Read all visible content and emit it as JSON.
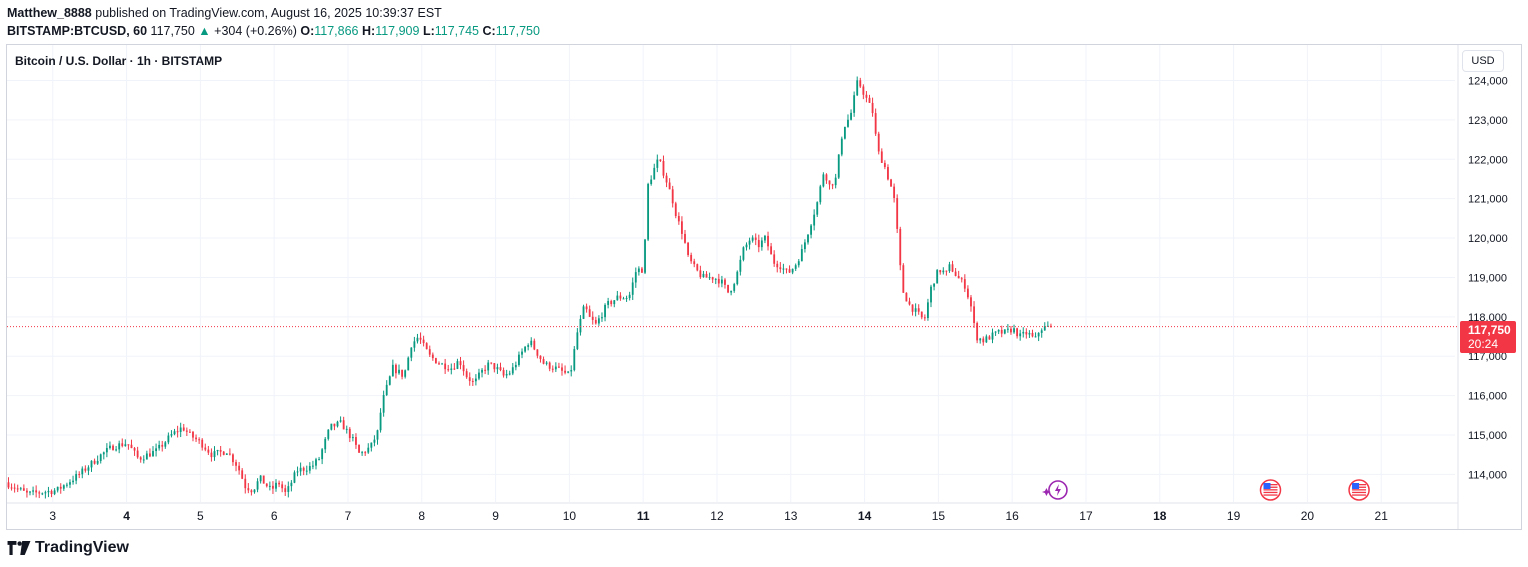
{
  "header": {
    "username": "Matthew_8888",
    "published": "published on TradingView.com, August 16, 2025 10:39:37 EST",
    "symbol": "BITSTAMP:BTCUSD, 60",
    "last": "117,750",
    "change_arrow": "▲",
    "change": "+304 (+0.26%)",
    "o_label": "O:",
    "o": "117,866",
    "h_label": "H:",
    "h": "117,909",
    "l_label": "L:",
    "l": "117,745",
    "c_label": "C:",
    "c": "117,750"
  },
  "legend": {
    "title": "Bitcoin / U.S. Dollar · 1h · BITSTAMP"
  },
  "currency_button": "USD",
  "price_tag": {
    "price": "117,750",
    "countdown": "20:24"
  },
  "footer": {
    "brand": "TradingView"
  },
  "colors": {
    "up": "#089981",
    "down": "#f23645",
    "grid": "#f0f3fa",
    "text": "#131722"
  },
  "chart_data": {
    "type": "candlestick",
    "title": "Bitcoin / U.S. Dollar · 1h · BITSTAMP",
    "timeframe": "1h",
    "currency": "USD",
    "ylim": [
      113300,
      124900
    ],
    "y_ticks": [
      "114,000",
      "115,000",
      "116,000",
      "117,000",
      "118,000",
      "119,000",
      "120,000",
      "121,000",
      "122,000",
      "123,000",
      "124,000"
    ],
    "y_tick_values": [
      114000,
      115000,
      116000,
      117000,
      118000,
      119000,
      120000,
      121000,
      122000,
      123000,
      124000
    ],
    "x_ticks": [
      {
        "day": 2.0,
        "label": "3",
        "bold": false
      },
      {
        "day": 3.0,
        "label": "4",
        "bold": true
      },
      {
        "day": 4.0,
        "label": "5",
        "bold": false
      },
      {
        "day": 5.0,
        "label": "6",
        "bold": false
      },
      {
        "day": 6.0,
        "label": "7",
        "bold": false
      },
      {
        "day": 7.0,
        "label": "8",
        "bold": false
      },
      {
        "day": 8.0,
        "label": "9",
        "bold": false
      },
      {
        "day": 9.0,
        "label": "10",
        "bold": false
      },
      {
        "day": 10.0,
        "label": "11",
        "bold": true
      },
      {
        "day": 11.0,
        "label": "12",
        "bold": false
      },
      {
        "day": 12.0,
        "label": "13",
        "bold": false
      },
      {
        "day": 13.0,
        "label": "14",
        "bold": true
      },
      {
        "day": 14.0,
        "label": "15",
        "bold": false
      },
      {
        "day": 15.0,
        "label": "16",
        "bold": false
      },
      {
        "day": 16.0,
        "label": "17",
        "bold": false
      },
      {
        "day": 17.0,
        "label": "18",
        "bold": true
      },
      {
        "day": 18.0,
        "label": "19",
        "bold": false
      },
      {
        "day": 19.0,
        "label": "20",
        "bold": false
      },
      {
        "day": 20.0,
        "label": "21",
        "bold": false
      }
    ],
    "x_range_days": [
      1.38,
      21.0
    ],
    "last_price": 117750,
    "grid": true,
    "anchors": [
      [
        1.4,
        113800
      ],
      [
        1.7,
        113500
      ],
      [
        2.1,
        113600
      ],
      [
        2.4,
        114000
      ],
      [
        2.7,
        114500
      ],
      [
        2.85,
        114700
      ],
      [
        3.05,
        114800
      ],
      [
        3.2,
        114400
      ],
      [
        3.45,
        114600
      ],
      [
        3.65,
        115000
      ],
      [
        3.8,
        115200
      ],
      [
        3.9,
        115000
      ],
      [
        4.05,
        114800
      ],
      [
        4.2,
        114500
      ],
      [
        4.4,
        114600
      ],
      [
        4.55,
        114200
      ],
      [
        4.65,
        113700
      ],
      [
        4.75,
        113600
      ],
      [
        4.85,
        113900
      ],
      [
        5.0,
        113600
      ],
      [
        5.1,
        113800
      ],
      [
        5.2,
        113500
      ],
      [
        5.35,
        114100
      ],
      [
        5.55,
        114200
      ],
      [
        5.65,
        114400
      ],
      [
        5.8,
        115200
      ],
      [
        5.95,
        115300
      ],
      [
        6.1,
        114900
      ],
      [
        6.2,
        114500
      ],
      [
        6.35,
        114700
      ],
      [
        6.45,
        115100
      ],
      [
        6.5,
        115800
      ],
      [
        6.65,
        116700
      ],
      [
        6.8,
        116500
      ],
      [
        6.9,
        117300
      ],
      [
        7.0,
        117500
      ],
      [
        7.05,
        117300
      ],
      [
        7.15,
        117000
      ],
      [
        7.3,
        116800
      ],
      [
        7.45,
        116700
      ],
      [
        7.55,
        116900
      ],
      [
        7.65,
        116500
      ],
      [
        7.75,
        116300
      ],
      [
        7.85,
        116600
      ],
      [
        7.95,
        116800
      ],
      [
        8.05,
        116700
      ],
      [
        8.15,
        116500
      ],
      [
        8.25,
        116600
      ],
      [
        8.4,
        117100
      ],
      [
        8.5,
        117400
      ],
      [
        8.6,
        117100
      ],
      [
        8.7,
        116800
      ],
      [
        8.85,
        116700
      ],
      [
        8.95,
        116600
      ],
      [
        9.05,
        116500
      ],
      [
        9.15,
        117600
      ],
      [
        9.25,
        118300
      ],
      [
        9.3,
        118000
      ],
      [
        9.4,
        117800
      ],
      [
        9.55,
        118300
      ],
      [
        9.7,
        118500
      ],
      [
        9.85,
        118500
      ],
      [
        9.95,
        119200
      ],
      [
        10.05,
        119200
      ],
      [
        10.1,
        121300
      ],
      [
        10.2,
        121800
      ],
      [
        10.25,
        122000
      ],
      [
        10.35,
        121500
      ],
      [
        10.45,
        120900
      ],
      [
        10.5,
        120500
      ],
      [
        10.58,
        120100
      ],
      [
        10.65,
        119500
      ],
      [
        10.75,
        119200
      ],
      [
        10.85,
        119000
      ],
      [
        11.0,
        119000
      ],
      [
        11.1,
        118900
      ],
      [
        11.2,
        118600
      ],
      [
        11.3,
        119000
      ],
      [
        11.4,
        119700
      ],
      [
        11.5,
        120000
      ],
      [
        11.6,
        119800
      ],
      [
        11.7,
        120000
      ],
      [
        11.8,
        119400
      ],
      [
        11.9,
        119300
      ],
      [
        12.0,
        119100
      ],
      [
        12.1,
        119300
      ],
      [
        12.2,
        119700
      ],
      [
        12.3,
        120300
      ],
      [
        12.4,
        120900
      ],
      [
        12.5,
        121800
      ],
      [
        12.55,
        121300
      ],
      [
        12.65,
        121500
      ],
      [
        12.75,
        122800
      ],
      [
        12.85,
        123100
      ],
      [
        12.95,
        124000
      ],
      [
        13.05,
        123600
      ],
      [
        13.15,
        123200
      ],
      [
        13.22,
        122200
      ],
      [
        13.3,
        121900
      ],
      [
        13.4,
        121300
      ],
      [
        13.45,
        120900
      ],
      [
        13.5,
        119800
      ],
      [
        13.55,
        118700
      ],
      [
        13.65,
        118300
      ],
      [
        13.75,
        118100
      ],
      [
        13.85,
        117900
      ],
      [
        13.95,
        118800
      ],
      [
        14.05,
        119200
      ],
      [
        14.15,
        119100
      ],
      [
        14.2,
        119300
      ],
      [
        14.3,
        119000
      ],
      [
        14.4,
        118800
      ],
      [
        14.48,
        118300
      ],
      [
        14.55,
        117500
      ],
      [
        14.65,
        117400
      ],
      [
        14.75,
        117500
      ],
      [
        14.85,
        117600
      ],
      [
        14.95,
        117600
      ],
      [
        15.05,
        117700
      ],
      [
        15.15,
        117500
      ],
      [
        15.25,
        117600
      ],
      [
        15.35,
        117400
      ],
      [
        15.42,
        117700
      ],
      [
        15.55,
        117750
      ]
    ],
    "events": [
      {
        "day": 15.62,
        "type": "news-bolt"
      },
      {
        "day": 18.5,
        "type": "us-economic-event"
      },
      {
        "day": 19.7,
        "type": "us-economic-event"
      }
    ]
  }
}
